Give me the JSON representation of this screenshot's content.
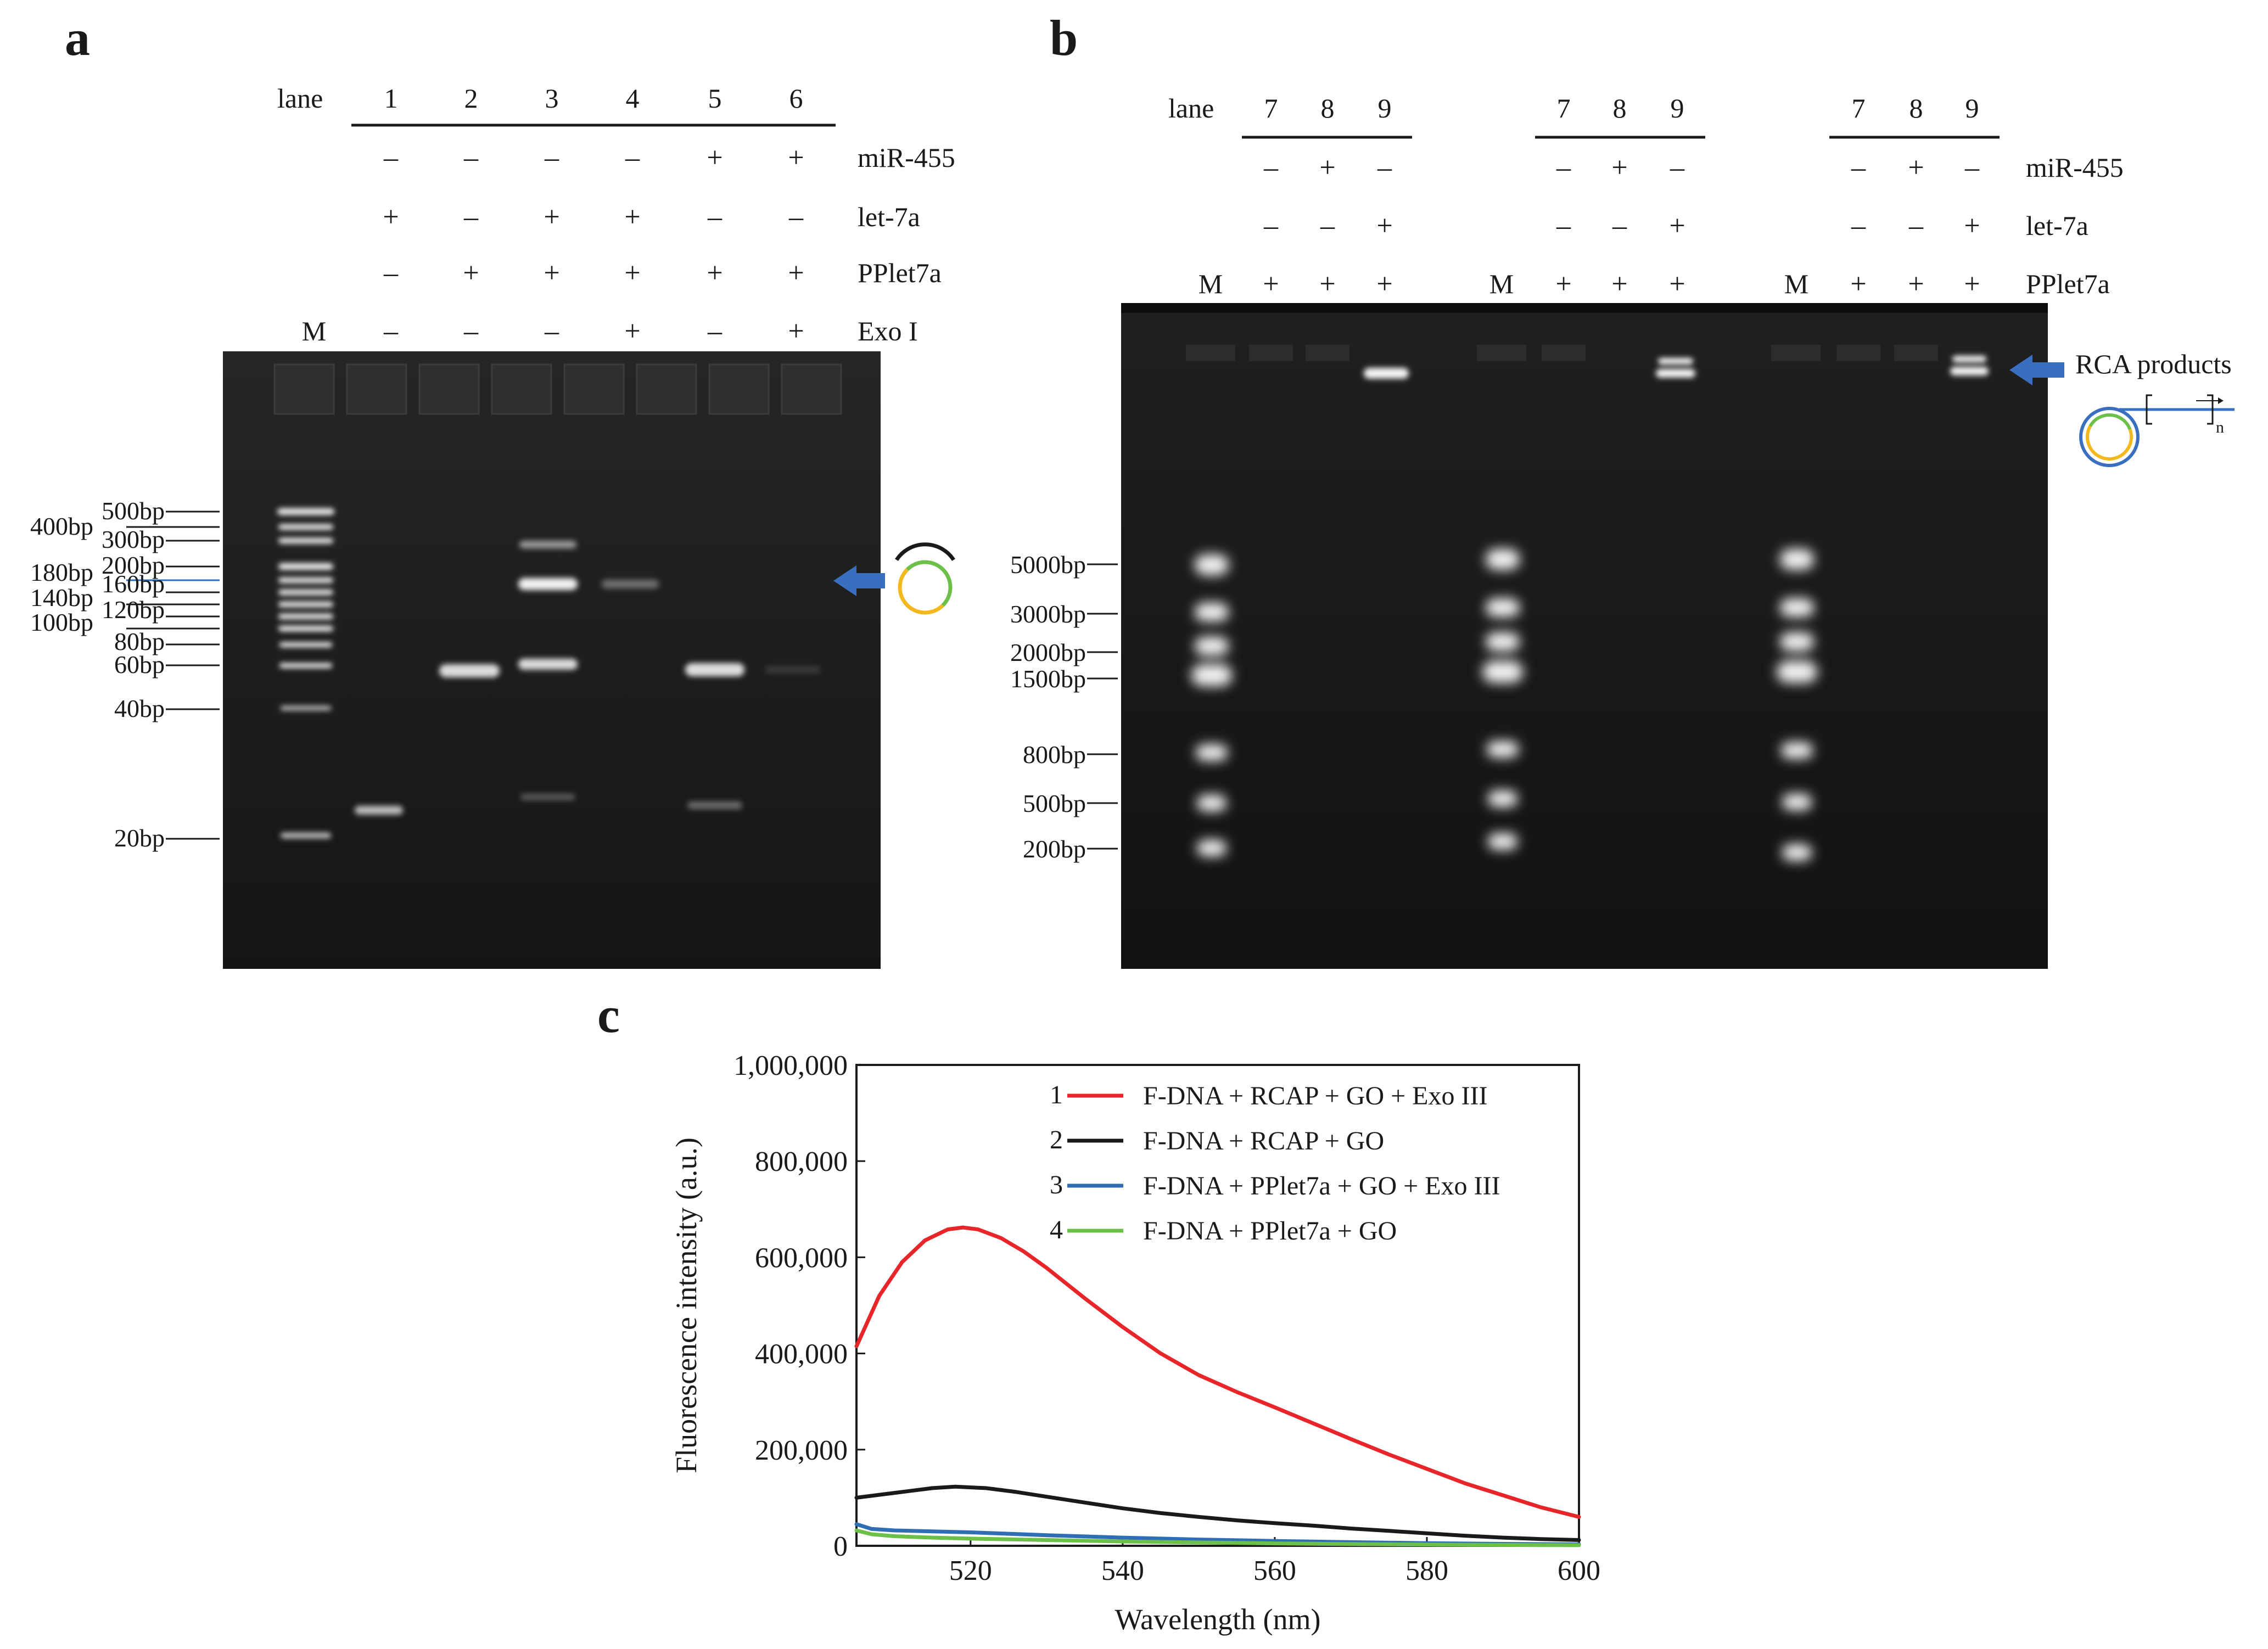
{
  "panel_a": {
    "letter": "a",
    "lane_word": "lane",
    "lane_numbers": [
      "1",
      "2",
      "3",
      "4",
      "5",
      "6"
    ],
    "marker_label": "M",
    "conditions": [
      {
        "name": "miR-455",
        "signs": [
          "–",
          "–",
          "–",
          "–",
          "+",
          "+"
        ]
      },
      {
        "name": "let-7a",
        "signs": [
          "+",
          "–",
          "+",
          "+",
          "–",
          "–"
        ]
      },
      {
        "name": "PPlet7a",
        "signs": [
          "–",
          "+",
          "+",
          "+",
          "+",
          "+"
        ]
      },
      {
        "name": "Exo I",
        "signs": [
          "–",
          "–",
          "–",
          "+",
          "–",
          "+"
        ]
      }
    ],
    "ladder_labels": [
      "500bp",
      "400bp",
      "300bp",
      "200bp",
      "180bp",
      "160bp",
      "140bp",
      "120bp",
      "100bp",
      "80bp",
      "60bp",
      "40bp",
      "20bp"
    ]
  },
  "panel_b": {
    "letter": "b",
    "lane_word": "lane",
    "groups": [
      {
        "lane_numbers": [
          "7",
          "8",
          "9"
        ],
        "marker_label": "M",
        "signs": {
          "miR-455": [
            "–",
            "+",
            "–"
          ],
          "let-7a": [
            "–",
            "–",
            "+"
          ],
          "PPlet7a": [
            "+",
            "+",
            "+"
          ]
        }
      },
      {
        "lane_numbers": [
          "7",
          "8",
          "9"
        ],
        "marker_label": "M",
        "signs": {
          "miR-455": [
            "–",
            "+",
            "–"
          ],
          "let-7a": [
            "–",
            "–",
            "+"
          ],
          "PPlet7a": [
            "+",
            "+",
            "+"
          ]
        }
      },
      {
        "lane_numbers": [
          "7",
          "8",
          "9"
        ],
        "marker_label": "M",
        "signs": {
          "miR-455": [
            "–",
            "+",
            "–"
          ],
          "let-7a": [
            "–",
            "–",
            "+"
          ],
          "PPlet7a": [
            "+",
            "+",
            "+"
          ]
        }
      }
    ],
    "condition_names": [
      "miR-455",
      "let-7a",
      "PPlet7a"
    ],
    "ladder_labels": [
      "5000bp",
      "3000bp",
      "2000bp",
      "1500bp",
      "800bp",
      "500bp",
      "200bp"
    ],
    "arrow_label": "RCA products",
    "product_subscript": "n"
  },
  "panel_c": {
    "letter": "c",
    "chart_data": {
      "type": "line",
      "xlabel": "Wavelength (nm)",
      "ylabel": "Fluorescence  intensity (a.u.)",
      "xlim": [
        505,
        600
      ],
      "ylim": [
        0,
        1000000
      ],
      "x_ticks": [
        520,
        540,
        560,
        580,
        600
      ],
      "x_tick_labels": [
        "520",
        "540",
        "560",
        "580",
        "600"
      ],
      "y_ticks": [
        0,
        200000,
        400000,
        600000,
        800000,
        1000000
      ],
      "y_tick_labels": [
        "0",
        "200,000",
        "400,000",
        "600,000",
        "800,000",
        "1,000,000"
      ],
      "legend_position": "top-right",
      "series": [
        {
          "index": "1",
          "name": "F-DNA + RCAP + GO + Exo III",
          "color": "#e8262a",
          "x": [
            505,
            508,
            511,
            514,
            517,
            519,
            521,
            524,
            527,
            530,
            535,
            540,
            545,
            550,
            555,
            560,
            565,
            570,
            575,
            580,
            585,
            590,
            595,
            600
          ],
          "y": [
            415000,
            520000,
            590000,
            635000,
            658000,
            662000,
            658000,
            640000,
            612000,
            578000,
            515000,
            455000,
            400000,
            355000,
            320000,
            288000,
            255000,
            222000,
            190000,
            160000,
            130000,
            105000,
            80000,
            60000
          ]
        },
        {
          "index": "2",
          "name": "F-DNA + RCAP + GO",
          "color": "#1a1a1a",
          "x": [
            505,
            510,
            515,
            518,
            522,
            526,
            530,
            535,
            540,
            545,
            550,
            555,
            560,
            565,
            570,
            575,
            580,
            585,
            590,
            595,
            600
          ],
          "y": [
            100000,
            110000,
            120000,
            123000,
            120000,
            112000,
            102000,
            90000,
            78000,
            68000,
            60000,
            53000,
            47000,
            42000,
            36000,
            31000,
            26000,
            21000,
            17000,
            14000,
            12000
          ]
        },
        {
          "index": "3",
          "name": "F-DNA + PPlet7a + GO + Exo III",
          "color": "#2f6db5",
          "x": [
            505,
            507,
            510,
            515,
            520,
            530,
            540,
            550,
            560,
            570,
            580,
            590,
            600
          ],
          "y": [
            45000,
            35000,
            32000,
            30000,
            28000,
            22000,
            17000,
            13000,
            10000,
            7500,
            5500,
            4000,
            3000
          ]
        },
        {
          "index": "4",
          "name": "F-DNA + PPlet7a + GO",
          "color": "#6cc04a",
          "x": [
            505,
            507,
            510,
            515,
            520,
            530,
            540,
            550,
            560,
            570,
            580,
            590,
            600
          ],
          "y": [
            32000,
            24000,
            20000,
            17000,
            15000,
            12000,
            9000,
            7000,
            5000,
            3500,
            2500,
            1800,
            1200
          ]
        }
      ]
    }
  }
}
